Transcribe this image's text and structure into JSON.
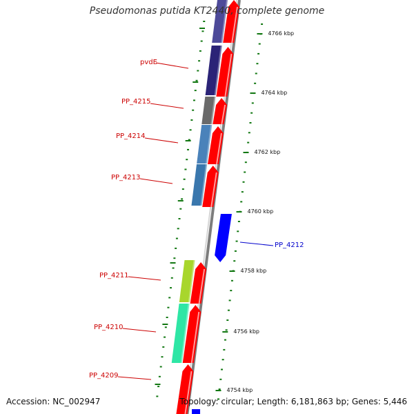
{
  "title": "Pseudomonas putida KT2440, complete genome",
  "accession": "Accession: NC_002947",
  "topology": "Topology: circular; Length: 6,181,863 bp; Genes: 5,446",
  "colors": {
    "forward": "#ff0000",
    "reverse": "#0000ff",
    "backbone": "#999999",
    "ticks": "#117711"
  },
  "scale_labels": [
    "4766 kbp",
    "4764 kbp",
    "4762 kbp",
    "4760 kbp",
    "4758 kbp",
    "4756 kbp",
    "4754 kbp"
  ],
  "gene_labels": [
    {
      "text": "pvdE",
      "color": "#cc0000"
    },
    {
      "text": "PP_4215",
      "color": "#cc0000"
    },
    {
      "text": "PP_4214",
      "color": "#cc0000"
    },
    {
      "text": "PP_4213",
      "color": "#cc0000"
    },
    {
      "text": "PP_4212",
      "color": "#0000cc"
    },
    {
      "text": "PP_4211",
      "color": "#cc0000"
    },
    {
      "text": "PP_4210",
      "color": "#cc0000"
    },
    {
      "text": "PP_4209",
      "color": "#cc0000"
    }
  ]
}
